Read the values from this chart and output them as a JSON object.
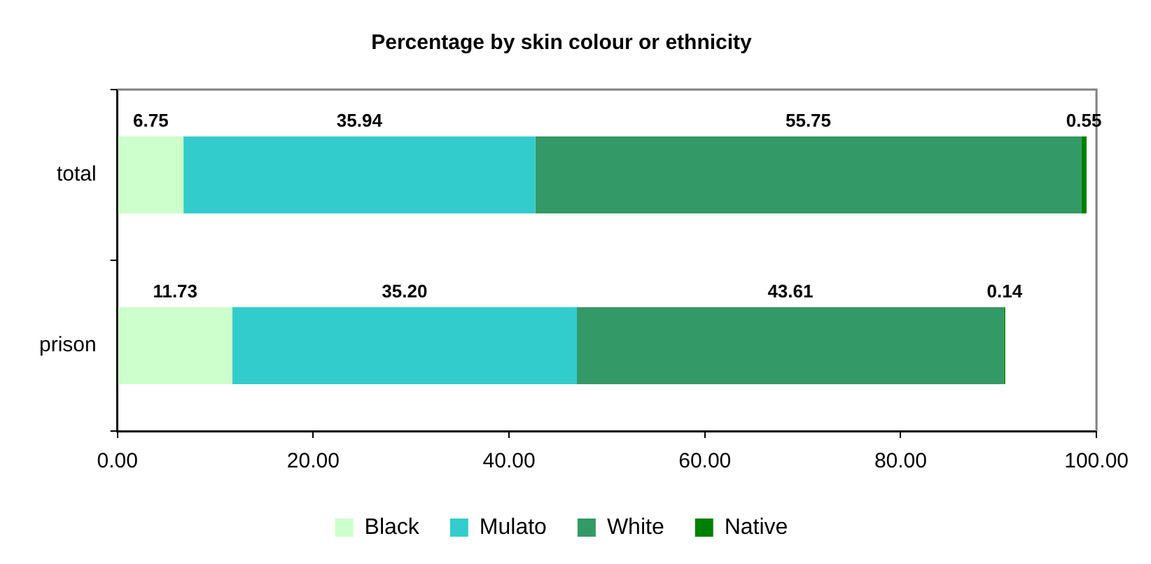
{
  "chart_data": {
    "type": "bar",
    "orientation": "horizontal",
    "stacked": true,
    "title": "Percentage by skin colour or ethnicity",
    "categories": [
      "total",
      "prison"
    ],
    "series": [
      {
        "name": "Black",
        "color": "#ccffcc",
        "values": [
          6.75,
          11.73
        ]
      },
      {
        "name": "Mulato",
        "color": "#33cccc",
        "values": [
          35.94,
          35.2
        ]
      },
      {
        "name": "White",
        "color": "#339966",
        "values": [
          55.75,
          43.61
        ]
      },
      {
        "name": "Native",
        "color": "#008000",
        "values": [
          0.55,
          0.14
        ]
      }
    ],
    "value_labels": [
      [
        "6.75",
        "11.73"
      ],
      [
        "35.94",
        "35.20"
      ],
      [
        "55.75",
        "43.61"
      ],
      [
        "0.55",
        "0.14"
      ]
    ],
    "xlim": [
      0,
      100
    ],
    "xticks": [
      {
        "value": 0,
        "label": "0.00"
      },
      {
        "value": 20,
        "label": "20.00"
      },
      {
        "value": 40,
        "label": "40.00"
      },
      {
        "value": 60,
        "label": "60.00"
      },
      {
        "value": 80,
        "label": "80.00"
      },
      {
        "value": 100,
        "label": "100.00"
      }
    ],
    "grid": false,
    "legend": "bottom"
  }
}
